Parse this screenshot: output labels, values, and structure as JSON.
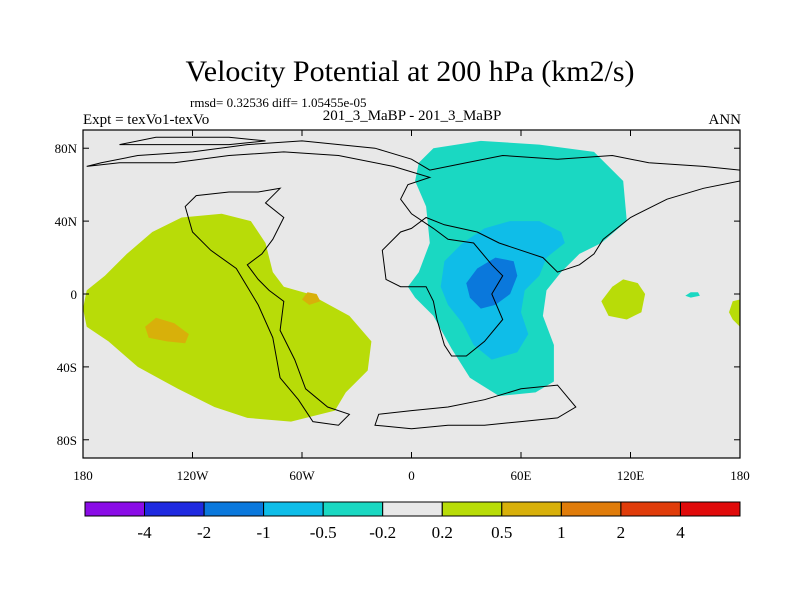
{
  "chart_data": {
    "type": "heatmap",
    "title": "Velocity Potential at 200 hPa (km2/s)",
    "stats_text": "rmsd= 0.32536 diff= 1.05455e-05",
    "left_label": "Expt = texVo1-texVo",
    "center_label": "201_3_MaBP - 201_3_MaBP",
    "right_label": "ANN",
    "xlim": [
      -180,
      180
    ],
    "ylim": [
      -90,
      90
    ],
    "x_ticks": [
      {
        "value": -180,
        "label": "180"
      },
      {
        "value": -120,
        "label": "120W"
      },
      {
        "value": -60,
        "label": "60W"
      },
      {
        "value": 0,
        "label": "0"
      },
      {
        "value": 60,
        "label": "60E"
      },
      {
        "value": 120,
        "label": "120E"
      },
      {
        "value": 180,
        "label": "180"
      }
    ],
    "y_ticks": [
      {
        "value": 80,
        "label": "80N"
      },
      {
        "value": 40,
        "label": "40N"
      },
      {
        "value": 0,
        "label": "0"
      },
      {
        "value": -40,
        "label": "40S"
      },
      {
        "value": -80,
        "label": "80S"
      }
    ],
    "colorbar": {
      "levels": [
        "-4",
        "-2",
        "-1",
        "-0.5",
        "-0.2",
        "0.2",
        "0.5",
        "1",
        "2",
        "4"
      ],
      "colors": [
        "#8a0ce6",
        "#1f2ae0",
        "#0a78dc",
        "#0fbde8",
        "#1ad8c2",
        "#e8e8e8",
        "#b8dc08",
        "#d8b00a",
        "#e07c0a",
        "#e03c0a",
        "#e00a0a"
      ]
    },
    "regions": [
      {
        "name": "western-positive",
        "level": "0.2 to 0.5",
        "color": "#b8dc08",
        "polygon": [
          [
            -180,
            -8
          ],
          [
            -178,
            -18
          ],
          [
            -166,
            -26
          ],
          [
            -150,
            -40
          ],
          [
            -128,
            -52
          ],
          [
            -108,
            -62
          ],
          [
            -90,
            -68
          ],
          [
            -66,
            -70
          ],
          [
            -42,
            -64
          ],
          [
            -36,
            -54
          ],
          [
            -24,
            -42
          ],
          [
            -22,
            -26
          ],
          [
            -34,
            -12
          ],
          [
            -56,
            0
          ],
          [
            -70,
            4
          ],
          [
            -76,
            12
          ],
          [
            -80,
            28
          ],
          [
            -88,
            40
          ],
          [
            -104,
            44
          ],
          [
            -126,
            42
          ],
          [
            -142,
            34
          ],
          [
            -156,
            22
          ],
          [
            -168,
            10
          ],
          [
            -178,
            2
          ]
        ]
      },
      {
        "name": "western-core",
        "level": "0.5 to 1",
        "color": "#d8b00a",
        "polygon": [
          [
            -146,
            -18
          ],
          [
            -140,
            -13
          ],
          [
            -130,
            -16
          ],
          [
            -122,
            -22
          ],
          [
            -124,
            -27
          ],
          [
            -134,
            -26
          ],
          [
            -144,
            -24
          ]
        ]
      },
      {
        "name": "western-small",
        "level": "0.5 to 1",
        "color": "#d8b00a",
        "polygon": [
          [
            -60,
            -3
          ],
          [
            -57,
            1
          ],
          [
            -52,
            0
          ],
          [
            -50,
            -4
          ],
          [
            -56,
            -6
          ]
        ]
      },
      {
        "name": "eastern-outer",
        "level": "-0.5 to -0.2",
        "color": "#1ad8c2",
        "polygon": [
          [
            4,
            72
          ],
          [
            12,
            80
          ],
          [
            38,
            84
          ],
          [
            70,
            82
          ],
          [
            100,
            78
          ],
          [
            116,
            62
          ],
          [
            118,
            40
          ],
          [
            104,
            28
          ],
          [
            92,
            22
          ],
          [
            82,
            12
          ],
          [
            74,
            2
          ],
          [
            72,
            -12
          ],
          [
            78,
            -28
          ],
          [
            78,
            -48
          ],
          [
            68,
            -54
          ],
          [
            48,
            -56
          ],
          [
            32,
            -46
          ],
          [
            22,
            -30
          ],
          [
            12,
            -12
          ],
          [
            2,
            -2
          ],
          [
            -2,
            4
          ],
          [
            4,
            12
          ],
          [
            10,
            28
          ],
          [
            8,
            48
          ],
          [
            2,
            62
          ]
        ]
      },
      {
        "name": "eastern-mid",
        "level": "-1 to -0.5",
        "color": "#0fbde8",
        "polygon": [
          [
            18,
            18
          ],
          [
            28,
            28
          ],
          [
            40,
            36
          ],
          [
            54,
            40
          ],
          [
            70,
            40
          ],
          [
            82,
            34
          ],
          [
            84,
            28
          ],
          [
            74,
            20
          ],
          [
            70,
            10
          ],
          [
            62,
            2
          ],
          [
            60,
            -10
          ],
          [
            64,
            -22
          ],
          [
            58,
            -32
          ],
          [
            44,
            -36
          ],
          [
            34,
            -28
          ],
          [
            28,
            -16
          ],
          [
            20,
            -6
          ],
          [
            16,
            4
          ]
        ]
      },
      {
        "name": "eastern-inner",
        "level": "-2 to -1",
        "color": "#0a78dc",
        "polygon": [
          [
            30,
            6
          ],
          [
            36,
            14
          ],
          [
            46,
            20
          ],
          [
            56,
            18
          ],
          [
            58,
            10
          ],
          [
            54,
            0
          ],
          [
            46,
            -6
          ],
          [
            38,
            -8
          ],
          [
            32,
            -2
          ]
        ]
      },
      {
        "name": "east-blob-1",
        "level": "0.2 to 0.5",
        "color": "#b8dc08",
        "polygon": [
          [
            104,
            -4
          ],
          [
            110,
            4
          ],
          [
            116,
            8
          ],
          [
            124,
            6
          ],
          [
            128,
            0
          ],
          [
            126,
            -10
          ],
          [
            118,
            -14
          ],
          [
            108,
            -12
          ]
        ]
      },
      {
        "name": "east-blob-2",
        "level": "-0.5 to -0.2",
        "color": "#1ad8c2",
        "polygon": [
          [
            150,
            -1
          ],
          [
            153,
            1
          ],
          [
            157,
            1
          ],
          [
            158,
            -1
          ],
          [
            153,
            -2
          ]
        ]
      },
      {
        "name": "east-blob-3",
        "level": "0.2 to 0.5",
        "color": "#b8dc08",
        "polygon": [
          [
            174,
            -10
          ],
          [
            176,
            -4
          ],
          [
            180,
            -3
          ],
          [
            180,
            -18
          ],
          [
            176,
            -14
          ]
        ]
      }
    ],
    "continents": [
      {
        "name": "eurasia-africa-outline",
        "polygon": [
          [
            -178,
            70
          ],
          [
            -170,
            72
          ],
          [
            -150,
            76
          ],
          [
            -120,
            78
          ],
          [
            -90,
            82
          ],
          [
            -60,
            84
          ],
          [
            -20,
            80
          ],
          [
            0,
            74
          ],
          [
            10,
            68
          ],
          [
            30,
            72
          ],
          [
            50,
            76
          ],
          [
            80,
            74
          ],
          [
            110,
            76
          ],
          [
            130,
            72
          ],
          [
            160,
            70
          ],
          [
            180,
            68
          ],
          [
            180,
            62
          ],
          [
            160,
            58
          ],
          [
            140,
            52
          ],
          [
            120,
            42
          ],
          [
            105,
            30
          ],
          [
            100,
            22
          ],
          [
            92,
            16
          ],
          [
            80,
            12
          ],
          [
            72,
            20
          ],
          [
            60,
            24
          ],
          [
            48,
            28
          ],
          [
            36,
            34
          ],
          [
            18,
            38
          ],
          [
            8,
            42
          ],
          [
            0,
            36
          ],
          [
            -6,
            34
          ],
          [
            -16,
            24
          ],
          [
            -14,
            8
          ],
          [
            -6,
            4
          ],
          [
            8,
            4
          ],
          [
            12,
            -4
          ],
          [
            14,
            -14
          ],
          [
            18,
            -28
          ],
          [
            22,
            -34
          ],
          [
            30,
            -34
          ],
          [
            40,
            -26
          ],
          [
            50,
            -14
          ],
          [
            44,
            0
          ],
          [
            50,
            10
          ],
          [
            44,
            16
          ],
          [
            34,
            28
          ],
          [
            20,
            30
          ],
          [
            12,
            36
          ],
          [
            0,
            44
          ],
          [
            -6,
            52
          ],
          [
            -2,
            60
          ],
          [
            10,
            64
          ],
          [
            -10,
            70
          ],
          [
            -40,
            76
          ],
          [
            -70,
            78
          ],
          [
            -100,
            76
          ],
          [
            -130,
            72
          ],
          [
            -160,
            72
          ]
        ]
      },
      {
        "name": "americas-outline",
        "polygon": [
          [
            -72,
            58
          ],
          [
            -80,
            50
          ],
          [
            -70,
            42
          ],
          [
            -76,
            30
          ],
          [
            -82,
            22
          ],
          [
            -90,
            16
          ],
          [
            -84,
            8
          ],
          [
            -78,
            2
          ],
          [
            -70,
            -4
          ],
          [
            -72,
            -20
          ],
          [
            -64,
            -36
          ],
          [
            -58,
            -52
          ],
          [
            -46,
            -62
          ],
          [
            -34,
            -66
          ],
          [
            -40,
            -72
          ],
          [
            -54,
            -70
          ],
          [
            -62,
            -58
          ],
          [
            -72,
            -46
          ],
          [
            -76,
            -24
          ],
          [
            -84,
            -6
          ],
          [
            -96,
            14
          ],
          [
            -110,
            24
          ],
          [
            -120,
            34
          ],
          [
            -124,
            48
          ],
          [
            -118,
            54
          ],
          [
            -100,
            56
          ],
          [
            -84,
            56
          ]
        ]
      },
      {
        "name": "antarctica-outline",
        "polygon": [
          [
            -20,
            -72
          ],
          [
            0,
            -74
          ],
          [
            20,
            -72
          ],
          [
            40,
            -72
          ],
          [
            60,
            -70
          ],
          [
            80,
            -68
          ],
          [
            90,
            -62
          ],
          [
            80,
            -50
          ],
          [
            60,
            -52
          ],
          [
            40,
            -58
          ],
          [
            20,
            -62
          ],
          [
            0,
            -64
          ],
          [
            -18,
            -66
          ]
        ]
      },
      {
        "name": "greenland-outline",
        "polygon": [
          [
            -160,
            82
          ],
          [
            -140,
            86
          ],
          [
            -100,
            86
          ],
          [
            -80,
            84
          ],
          [
            -100,
            82
          ],
          [
            -130,
            82
          ]
        ]
      }
    ]
  }
}
